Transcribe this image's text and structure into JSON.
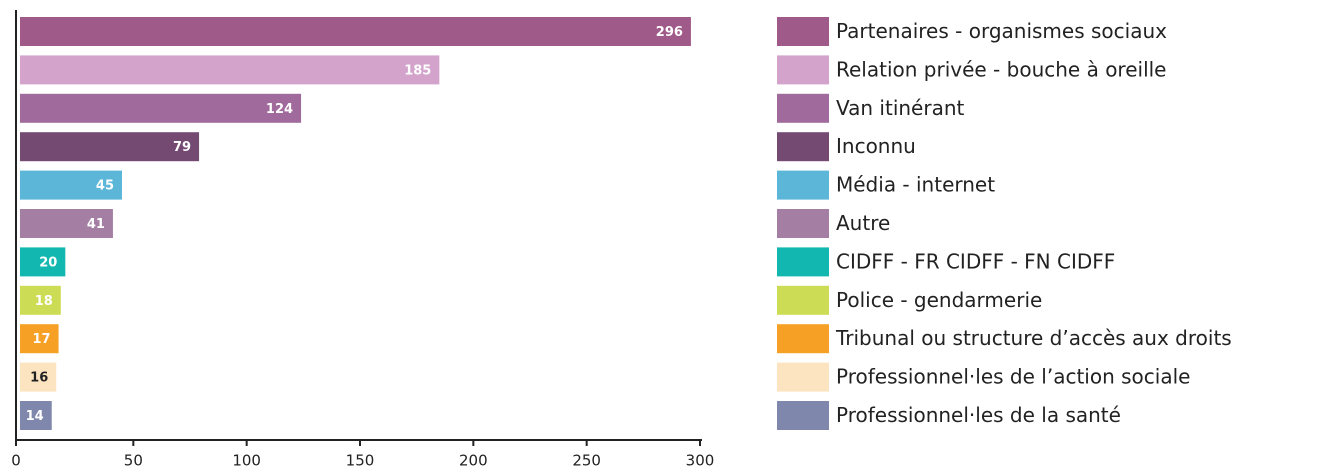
{
  "chart_data": {
    "type": "barh",
    "categories": [
      "Partenaires - organismes sociaux",
      "Relation privée - bouche à oreille",
      "Van itinérant",
      "Inconnu",
      "Média - internet",
      "Autre",
      "CIDFF - FR CIDFF - FN CIDFF",
      "Police - gendarmerie",
      "Tribunal ou structure d’accès aux droits",
      "Professionnel·les de l’action sociale",
      "Professionnel·les de la santé"
    ],
    "values": [
      296,
      185,
      124,
      79,
      45,
      41,
      20,
      18,
      17,
      16,
      14
    ],
    "colors": [
      "#a05a8a",
      "#d3a3cc",
      "#a06a9c",
      "#744a73",
      "#5bb6d8",
      "#a57fa3",
      "#12b8b0",
      "#cddc55",
      "#f6a025",
      "#fde4c0",
      "#7f87ad"
    ],
    "xlim": [
      0,
      300
    ],
    "xticks": [
      0,
      50,
      100,
      150,
      200,
      250,
      300
    ],
    "legend": "right"
  }
}
